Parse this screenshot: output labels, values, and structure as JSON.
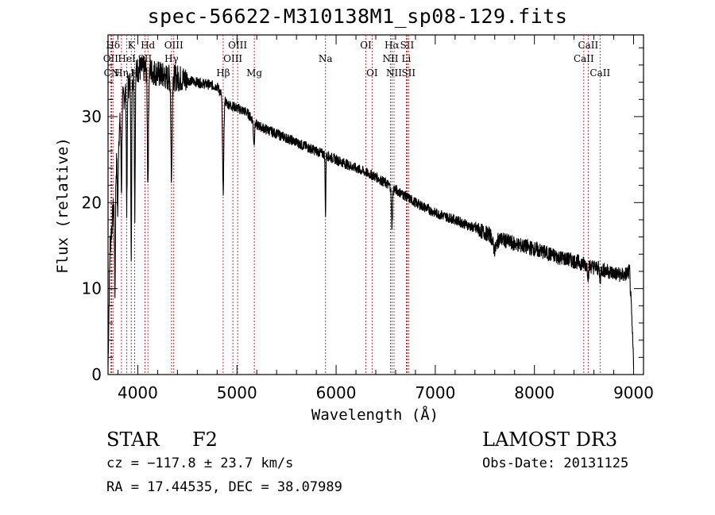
{
  "chart_data": {
    "type": "line",
    "title": "spec-56622-M310138M1_sp08-129.fits",
    "xlabel": "Wavelength (Å)",
    "ylabel": "Flux (relative)",
    "xlim": [
      3700,
      9100
    ],
    "ylim": [
      0,
      39.5
    ],
    "xticks": [
      4000,
      5000,
      6000,
      7000,
      8000,
      9000
    ],
    "yticks": [
      0,
      10,
      20,
      30
    ],
    "line_color": "#000000",
    "marker_color": "#b22222",
    "continuum": [
      [
        3700,
        1.0
      ],
      [
        3720,
        15
      ],
      [
        3760,
        20
      ],
      [
        3800,
        27
      ],
      [
        3850,
        32
      ],
      [
        3900,
        33.5
      ],
      [
        4000,
        35.5
      ],
      [
        4100,
        35.5
      ],
      [
        4200,
        35
      ],
      [
        4300,
        34.5
      ],
      [
        4400,
        34.5
      ],
      [
        4600,
        34
      ],
      [
        4800,
        33.5
      ],
      [
        4850,
        32.5
      ],
      [
        4900,
        31.5
      ],
      [
        5000,
        31
      ],
      [
        5100,
        30.5
      ],
      [
        5200,
        29
      ],
      [
        5400,
        28
      ],
      [
        5600,
        27
      ],
      [
        5800,
        26
      ],
      [
        6000,
        25
      ],
      [
        6200,
        24
      ],
      [
        6400,
        23
      ],
      [
        6600,
        21.5
      ],
      [
        6800,
        20
      ],
      [
        7000,
        18.8
      ],
      [
        7200,
        18
      ],
      [
        7400,
        17
      ],
      [
        7600,
        16
      ],
      [
        7800,
        15.2
      ],
      [
        8000,
        14.6
      ],
      [
        8200,
        13.8
      ],
      [
        8400,
        13.2
      ],
      [
        8600,
        12.5
      ],
      [
        8800,
        11.8
      ],
      [
        8900,
        11.5
      ],
      [
        8960,
        12
      ],
      [
        9000,
        1.5
      ]
    ],
    "absorption": [
      {
        "center": 3770,
        "depth": 12,
        "width": 6
      },
      {
        "center": 3798,
        "depth": 8,
        "width": 6
      },
      {
        "center": 3835,
        "depth": 9,
        "width": 6
      },
      {
        "center": 3889,
        "depth": 14,
        "width": 6
      },
      {
        "center": 3934,
        "depth": 22,
        "width": 5
      },
      {
        "center": 3970,
        "depth": 16,
        "width": 6
      },
      {
        "center": 4102,
        "depth": 13,
        "width": 8
      },
      {
        "center": 4340,
        "depth": 12,
        "width": 8
      },
      {
        "center": 4861,
        "depth": 11,
        "width": 9
      },
      {
        "center": 5172,
        "depth": 2.5,
        "width": 8
      },
      {
        "center": 5893,
        "depth": 7,
        "width": 5
      },
      {
        "center": 6563,
        "depth": 4.5,
        "width": 8
      },
      {
        "center": 7600,
        "depth": 1.5,
        "width": 25
      },
      {
        "center": 8542,
        "depth": 1.2,
        "width": 8
      },
      {
        "center": 8662,
        "depth": 1.2,
        "width": 8
      }
    ],
    "line_markers": [
      {
        "label": "Hδ",
        "wavelength": 3750,
        "row": 0
      },
      {
        "label": "OII",
        "wavelength": 3727,
        "row": 1
      },
      {
        "label": "CN",
        "wavelength": 3736,
        "row": 2
      },
      {
        "label": "K",
        "wavelength": 3934,
        "row": 0
      },
      {
        "label": "HeI",
        "wavelength": 3889,
        "row": 1
      },
      {
        "label": "Hη",
        "wavelength": 3835,
        "row": 2
      },
      {
        "label": "H",
        "wavelength": 3968,
        "row": 2
      },
      {
        "label": "Hd",
        "wavelength": 4102,
        "row": 0
      },
      {
        "label": "SII",
        "wavelength": 4072,
        "row": 1
      },
      {
        "label": "OIII",
        "wavelength": 4363,
        "row": 0
      },
      {
        "label": "Hγ",
        "wavelength": 4340,
        "row": 1
      },
      {
        "label": "OIII",
        "wavelength": 5007,
        "row": 0
      },
      {
        "label": "OIII",
        "wavelength": 4959,
        "row": 1
      },
      {
        "label": "Hβ",
        "wavelength": 4861,
        "row": 2
      },
      {
        "label": "Mg",
        "wavelength": 5175,
        "row": 2
      },
      {
        "label": "Na",
        "wavelength": 5893,
        "row": 1
      },
      {
        "label": "OI",
        "wavelength": 6300,
        "row": 0
      },
      {
        "label": "OI",
        "wavelength": 6363,
        "row": 2
      },
      {
        "label": "Hα",
        "wavelength": 6563,
        "row": 0
      },
      {
        "label": "SII",
        "wavelength": 6716,
        "row": 0
      },
      {
        "label": "NII",
        "wavelength": 6548,
        "row": 1
      },
      {
        "label": "Li",
        "wavelength": 6708,
        "row": 1
      },
      {
        "label": "NII",
        "wavelength": 6584,
        "row": 2
      },
      {
        "label": "SII",
        "wavelength": 6731,
        "row": 2
      },
      {
        "label": "CaII",
        "wavelength": 8542,
        "row": 0
      },
      {
        "label": "CaII",
        "wavelength": 8498,
        "row": 1
      },
      {
        "label": "CaII",
        "wavelength": 8662,
        "row": 2
      }
    ]
  },
  "info": {
    "class_label": "STAR",
    "subclass": "F2",
    "survey": "LAMOST DR3",
    "cz_text": "cz = −117.8 ± 23.7 km/s",
    "obs_date_text": "Obs-Date: 20131125",
    "radec_text": "RA =  17.44535, DEC =  38.07989"
  }
}
